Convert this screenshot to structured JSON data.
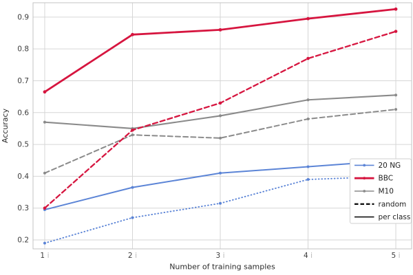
{
  "chart_data": {
    "type": "line",
    "title": "",
    "xlabel": "Number of training samples",
    "ylabel": "Accuracy",
    "x": [
      1,
      2,
      3,
      4,
      5
    ],
    "x_ticks": [
      {
        "value": "1",
        "suffix": "i"
      },
      {
        "value": "2",
        "suffix": "i"
      },
      {
        "value": "3",
        "suffix": "i"
      },
      {
        "value": "4",
        "suffix": "i"
      },
      {
        "value": "5",
        "suffix": "i"
      }
    ],
    "y_ticks": [
      "0.2",
      "0.3",
      "0.4",
      "0.5",
      "0.6",
      "0.7",
      "0.8",
      "0.9"
    ],
    "y_tick_values": [
      0.2,
      0.3,
      0.4,
      0.5,
      0.6,
      0.7,
      0.8,
      0.9
    ],
    "xlim": [
      0.867,
      5.18
    ],
    "ylim": [
      0.172,
      0.945
    ],
    "grid": true,
    "colors": {
      "blue": "#5b84d6",
      "red": "#d6153f",
      "gray": "#8a8a8a",
      "black": "#111111",
      "gridline": "#d6d6d6",
      "plot_border": "#c3c3c3",
      "tick_label": "#3c3c3c",
      "tick_suffix": "#b9b9b9",
      "axis_label": "#2b2b2b",
      "legend_text": "#1f1f1f",
      "legend_border": "#cfcfcf"
    },
    "series": [
      {
        "name": "20 NG random",
        "dataset": "20 NG",
        "split": "random",
        "color": "#5b84d6",
        "style": "dotted",
        "width": 1.9,
        "marker_r": 2.0,
        "values": [
          0.19,
          0.27,
          0.315,
          0.39,
          0.4
        ]
      },
      {
        "name": "20 NG per class",
        "dataset": "20 NG",
        "split": "per class",
        "color": "#5b84d6",
        "style": "solid",
        "width": 2.0,
        "marker_r": 2.0,
        "values": [
          0.295,
          0.365,
          0.41,
          0.43,
          0.45
        ]
      },
      {
        "name": "M10 random",
        "dataset": "M10",
        "split": "random",
        "color": "#8a8a8a",
        "style": "dashed",
        "width": 2.0,
        "marker_r": 2.0,
        "values": [
          0.41,
          0.53,
          0.52,
          0.58,
          0.61
        ]
      },
      {
        "name": "M10 per class",
        "dataset": "M10",
        "split": "per class",
        "color": "#8a8a8a",
        "style": "solid",
        "width": 2.1,
        "marker_r": 2.1,
        "values": [
          0.57,
          0.55,
          0.59,
          0.64,
          0.655
        ]
      },
      {
        "name": "BBC random",
        "dataset": "BBC",
        "split": "random",
        "color": "#d6153f",
        "style": "dashed",
        "width": 2.3,
        "marker_r": 2.3,
        "values": [
          0.3,
          0.545,
          0.63,
          0.77,
          0.855
        ]
      },
      {
        "name": "BBC per class",
        "dataset": "BBC",
        "split": "per class",
        "color": "#d6153f",
        "style": "solid",
        "width": 2.8,
        "marker_r": 2.4,
        "values": [
          0.665,
          0.845,
          0.86,
          0.895,
          0.925
        ]
      }
    ],
    "legend": {
      "position": "lower right",
      "entries": [
        {
          "label": "20 NG",
          "color": "#5b84d6",
          "style": "solid",
          "width": 1.6,
          "marker": true
        },
        {
          "label": "BBC",
          "color": "#d6153f",
          "style": "solid",
          "width": 2.8,
          "marker": true
        },
        {
          "label": "M10",
          "color": "#8a8a8a",
          "style": "solid",
          "width": 1.4,
          "marker": true
        },
        {
          "label": "random",
          "color": "#111111",
          "style": "dashed",
          "width": 2.4,
          "marker": false
        },
        {
          "label": "per class",
          "color": "#111111",
          "style": "solid",
          "width": 1.6,
          "marker": false
        }
      ]
    }
  }
}
